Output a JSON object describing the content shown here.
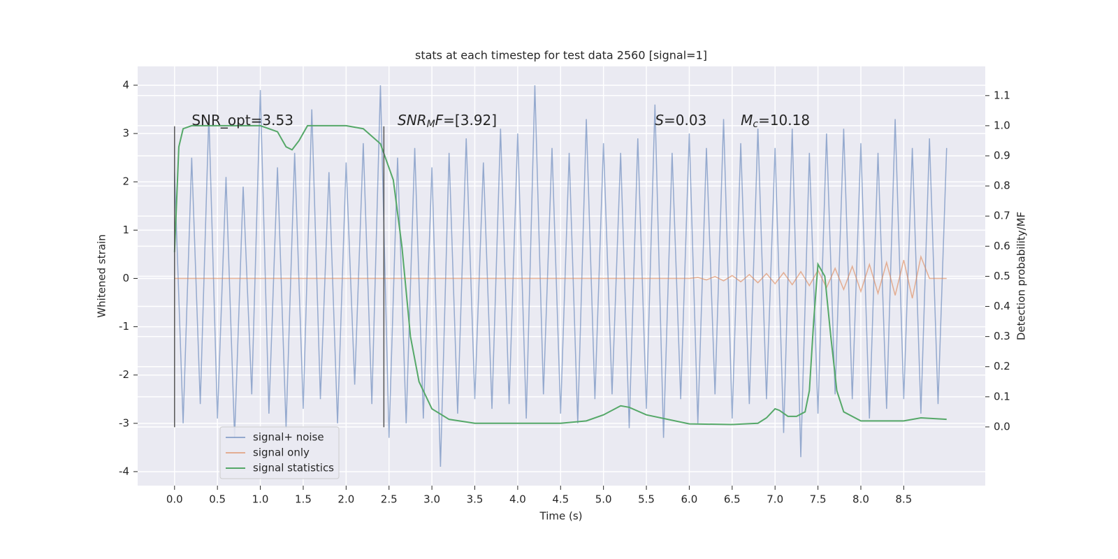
{
  "chart_data": {
    "type": "line",
    "title": "stats at each timestep for test data 2560 [signal=1]",
    "x_label": "Time (s)",
    "y_label": "Whitened strain",
    "y2_label": "Detection probability/MF",
    "xlim": [
      -0.43,
      9.45
    ],
    "ylim": [
      -4.29,
      4.39
    ],
    "y2lim": [
      -0.195,
      1.197
    ],
    "xticks": [
      {
        "value": 0,
        "label": "0.0"
      },
      0.5,
      {
        "value": 1,
        "label": "1.0"
      },
      1.5,
      {
        "value": 2,
        "label": "2.0"
      },
      2.5,
      {
        "value": 3,
        "label": "3.0"
      },
      3.5,
      {
        "value": 4,
        "label": "4.0"
      },
      4.5,
      {
        "value": 5,
        "label": "5.0"
      },
      5.5,
      {
        "value": 6,
        "label": "6.0"
      },
      6.5,
      {
        "value": 7,
        "label": "7.0"
      },
      7.5,
      {
        "value": 8,
        "label": "8.0"
      },
      8.5
    ],
    "yticks": [
      -4,
      -3,
      -2,
      -1,
      0,
      1,
      2,
      3,
      4
    ],
    "y2ticks": [
      {
        "value": 0,
        "label": "0.0"
      },
      0.1,
      0.2,
      0.3,
      0.4,
      0.5,
      0.6,
      0.7,
      0.8,
      0.9,
      {
        "value": 1,
        "label": "1.0"
      },
      1.1
    ],
    "grid": true,
    "legend": "lower left",
    "series": [
      {
        "name": "signal+ noise",
        "color": "#4c72b0",
        "alpha": 0.55,
        "x": [
          0,
          0.1,
          0.2,
          0.3,
          0.4,
          0.5,
          0.6,
          0.7,
          0.8,
          0.9,
          1.0,
          1.1,
          1.2,
          1.3,
          1.4,
          1.5,
          1.6,
          1.7,
          1.8,
          1.9,
          2.0,
          2.1,
          2.2,
          2.3,
          2.4,
          2.5,
          2.6,
          2.7,
          2.8,
          2.9,
          3.0,
          3.1,
          3.2,
          3.3,
          3.4,
          3.5,
          3.6,
          3.7,
          3.8,
          3.9,
          4.0,
          4.1,
          4.2,
          4.3,
          4.4,
          4.5,
          4.6,
          4.7,
          4.8,
          4.9,
          5.0,
          5.1,
          5.2,
          5.3,
          5.4,
          5.5,
          5.6,
          5.7,
          5.8,
          5.9,
          6.0,
          6.1,
          6.2,
          6.3,
          6.4,
          6.5,
          6.6,
          6.7,
          6.8,
          6.9,
          7.0,
          7.1,
          7.2,
          7.3,
          7.4,
          7.5,
          7.6,
          7.7,
          7.8,
          7.9,
          8.0,
          8.1,
          8.2,
          8.3,
          8.4,
          8.5,
          8.6,
          8.7,
          8.8,
          8.9,
          9.0
        ],
        "values": [
          2.2,
          -3.0,
          2.5,
          -2.6,
          3.4,
          -2.9,
          2.1,
          -3.3,
          1.9,
          -2.4,
          3.9,
          -2.8,
          2.3,
          -3.1,
          2.6,
          -2.7,
          3.5,
          -2.5,
          2.2,
          -3.0,
          2.4,
          -2.2,
          2.8,
          -2.6,
          4.0,
          -3.3,
          2.5,
          -3.0,
          2.7,
          -2.9,
          2.3,
          -3.9,
          2.6,
          -2.8,
          2.9,
          -2.5,
          2.4,
          -2.7,
          3.1,
          -2.6,
          3.0,
          -2.9,
          4.0,
          -2.4,
          2.7,
          -2.8,
          2.6,
          -3.0,
          3.3,
          -2.5,
          2.8,
          -2.4,
          2.6,
          -3.1,
          2.9,
          -2.7,
          3.6,
          -3.3,
          2.6,
          -2.5,
          3.0,
          -3.0,
          2.7,
          -2.4,
          3.3,
          -2.9,
          2.8,
          -2.6,
          3.1,
          -2.5,
          2.7,
          -3.2,
          3.1,
          -3.7,
          2.6,
          -2.8,
          3.0,
          -2.4,
          3.1,
          -2.5,
          2.8,
          -2.9,
          2.6,
          -2.7,
          3.3,
          -2.5,
          2.7,
          -2.8,
          2.9,
          -2.6,
          2.7
        ]
      },
      {
        "name": "signal only",
        "color": "#dd8452",
        "alpha": 0.6,
        "x": [
          0,
          6.0,
          6.1,
          6.2,
          6.3,
          6.4,
          6.5,
          6.6,
          6.7,
          6.8,
          6.9,
          7.0,
          7.1,
          7.2,
          7.3,
          7.4,
          7.5,
          7.6,
          7.7,
          7.8,
          7.9,
          8.0,
          8.1,
          8.2,
          8.3,
          8.4,
          8.5,
          8.6,
          8.7,
          8.8,
          9.0
        ],
        "values": [
          0,
          0,
          0.02,
          -0.03,
          0.04,
          -0.05,
          0.06,
          -0.07,
          0.08,
          -0.09,
          0.1,
          -0.11,
          0.12,
          -0.13,
          0.14,
          -0.15,
          0.17,
          -0.19,
          0.21,
          -0.23,
          0.25,
          -0.27,
          0.29,
          -0.31,
          0.33,
          -0.35,
          0.38,
          -0.41,
          0.45,
          0,
          0
        ]
      },
      {
        "name": "signal statistics",
        "color": "#55a868",
        "alpha": 1,
        "axis": "y2",
        "x": [
          0.0,
          0.05,
          0.1,
          0.2,
          0.5,
          1.0,
          1.2,
          1.3,
          1.37,
          1.45,
          1.55,
          1.7,
          2.0,
          2.2,
          2.4,
          2.55,
          2.65,
          2.75,
          2.85,
          3.0,
          3.2,
          3.5,
          4.0,
          4.5,
          4.8,
          5.0,
          5.2,
          5.3,
          5.5,
          6.0,
          6.5,
          6.8,
          6.9,
          7.0,
          7.05,
          7.15,
          7.25,
          7.35,
          7.4,
          7.45,
          7.5,
          7.58,
          7.65,
          7.72,
          7.8,
          8.0,
          8.5,
          8.7,
          9.0
        ],
        "values": [
          0.58,
          0.93,
          0.99,
          1.0,
          1.0,
          1.0,
          0.98,
          0.93,
          0.92,
          0.95,
          1.0,
          1.0,
          1.0,
          0.99,
          0.94,
          0.82,
          0.6,
          0.3,
          0.15,
          0.06,
          0.025,
          0.012,
          0.012,
          0.012,
          0.02,
          0.04,
          0.07,
          0.065,
          0.04,
          0.01,
          0.008,
          0.012,
          0.03,
          0.06,
          0.055,
          0.035,
          0.035,
          0.05,
          0.12,
          0.35,
          0.54,
          0.5,
          0.3,
          0.12,
          0.05,
          0.02,
          0.02,
          0.03,
          0.025
        ]
      }
    ],
    "vlines": [
      {
        "x": 0.0,
        "ymin": -3.08,
        "ymax": 3.15,
        "color": "#555555"
      },
      {
        "x": 2.44,
        "ymin": -3.08,
        "ymax": 3.15,
        "color": "#555555"
      }
    ],
    "annotations": [
      {
        "x": 0.2,
        "y": 3.26,
        "parts": [
          {
            "text": "SNR_opt=3.53"
          }
        ]
      },
      {
        "x": 2.6,
        "y": 3.26,
        "parts": [
          {
            "text": "SNR",
            "italic": true
          },
          {
            "text": "M",
            "italic": true,
            "sub": true
          },
          {
            "text": "F",
            "italic": true
          },
          {
            "text": "=[3.92]"
          }
        ]
      },
      {
        "x": 5.6,
        "y": 3.26,
        "parts": [
          {
            "text": "S",
            "italic": true
          },
          {
            "text": "=0.03"
          }
        ]
      },
      {
        "x": 6.6,
        "y": 3.26,
        "parts": [
          {
            "text": "M",
            "italic": true
          },
          {
            "text": "c",
            "italic": true,
            "sub": true
          },
          {
            "text": "=10.18"
          }
        ]
      }
    ]
  }
}
